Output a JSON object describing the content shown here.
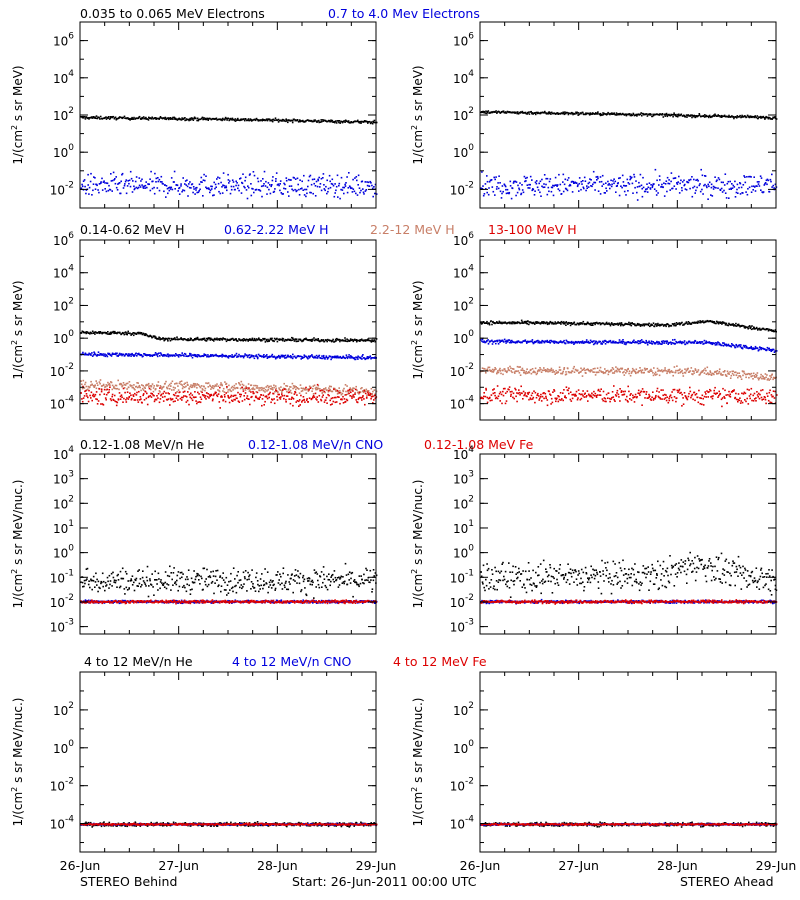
{
  "chart_data": {
    "type": "scatter",
    "x_tick_labels": [
      "26-Jun",
      "27-Jun",
      "28-Jun",
      "29-Jun"
    ],
    "x_range_days": [
      0,
      3
    ],
    "footer": {
      "left": "STEREO Behind",
      "center": "Start: 26-Jun-2011 00:00 UTC",
      "right": "STEREO Ahead"
    },
    "colors": {
      "black": "#000000",
      "blue": "#0000dd",
      "tan": "#c87f68",
      "red": "#dd0000"
    },
    "rows": [
      {
        "ylabel_main": "1/(cm",
        "ylabel_sup": "2",
        "ylabel_rest": " s sr MeV)",
        "yexp_range": [
          -3,
          7
        ],
        "y_tick_exponents": [
          -2,
          0,
          2,
          4,
          6
        ],
        "series": [
          {
            "name": "0.035 to 0.065 MeV Electrons",
            "color": "black",
            "behind": {
              "level": [
                [
                  0,
                  80
                ],
                [
                  1.5,
                  65
                ],
                [
                  3,
                  45
                ]
              ],
              "spread": 0.04
            },
            "ahead": {
              "level": [
                [
                  0,
                  160
                ],
                [
                  1.5,
                  120
                ],
                [
                  3,
                  80
                ]
              ],
              "spread": 0.04
            }
          },
          {
            "name": "0.7 to 4.0 Mev Electrons",
            "color": "blue",
            "behind": {
              "level": [
                [
                  0,
                  0.018
                ],
                [
                  3,
                  0.018
                ]
              ],
              "spread": 0.3
            },
            "ahead": {
              "level": [
                [
                  0,
                  0.018
                ],
                [
                  3,
                  0.018
                ]
              ],
              "spread": 0.3
            }
          }
        ]
      },
      {
        "ylabel_main": "1/(cm",
        "ylabel_sup": "2",
        "ylabel_rest": " s sr MeV)",
        "yexp_range": [
          -5,
          6
        ],
        "y_tick_exponents": [
          -4,
          -2,
          0,
          2,
          4,
          6
        ],
        "series": [
          {
            "name": "0.14-0.62 MeV H",
            "color": "black",
            "behind": {
              "level": [
                [
                  0,
                  2.5
                ],
                [
                  0.6,
                  2.2
                ],
                [
                  0.8,
                  1.0
                ],
                [
                  3,
                  0.8
                ]
              ],
              "spread": 0.05
            },
            "ahead": {
              "level": [
                [
                  0,
                  10
                ],
                [
                  1,
                  9
                ],
                [
                  1.9,
                  7
                ],
                [
                  2.3,
                  12
                ],
                [
                  3,
                  3
                ]
              ],
              "spread": 0.05
            }
          },
          {
            "name": "0.62-2.22 MeV H",
            "color": "blue",
            "behind": {
              "level": [
                [
                  0,
                  0.12
                ],
                [
                  3,
                  0.07
                ]
              ],
              "spread": 0.06
            },
            "ahead": {
              "level": [
                [
                  0,
                  0.7
                ],
                [
                  2.3,
                  0.6
                ],
                [
                  3,
                  0.2
                ]
              ],
              "spread": 0.06
            }
          },
          {
            "name": "2.2-12 MeV H",
            "color": "tan",
            "behind": {
              "level": [
                [
                  0,
                  0.0015
                ],
                [
                  1.5,
                  0.0012
                ],
                [
                  3,
                  0.0006
                ]
              ],
              "spread": 0.15
            },
            "ahead": {
              "level": [
                [
                  0,
                  0.012
                ],
                [
                  2.3,
                  0.01
                ],
                [
                  3,
                  0.004
                ]
              ],
              "spread": 0.12
            }
          },
          {
            "name": "13-100 MeV H",
            "color": "red",
            "behind": {
              "level": [
                [
                  0,
                  0.0003
                ],
                [
                  3,
                  0.0003
                ]
              ],
              "spread": 0.25
            },
            "ahead": {
              "level": [
                [
                  0,
                  0.0004
                ],
                [
                  3,
                  0.0003
                ]
              ],
              "spread": 0.25
            }
          }
        ]
      },
      {
        "ylabel_main": "1/(cm",
        "ylabel_sup": "2",
        "ylabel_rest": " s sr MeV/nuc.)",
        "yexp_range": [
          -3.3,
          4
        ],
        "y_tick_exponents": [
          -3,
          -2,
          -1,
          0,
          1,
          2,
          3,
          4
        ],
        "series": [
          {
            "name": "0.12-1.08 MeV/n He",
            "color": "black",
            "behind": {
              "level": [
                [
                  0,
                  0.08
                ],
                [
                  3,
                  0.08
                ]
              ],
              "spread": 0.25
            },
            "ahead": {
              "level": [
                [
                  0,
                  0.1
                ],
                [
                  1.8,
                  0.12
                ],
                [
                  2.2,
                  0.4
                ],
                [
                  2.6,
                  0.12
                ],
                [
                  3,
                  0.09
                ]
              ],
              "spread": 0.3
            }
          },
          {
            "name": "0.12-1.08 MeV/n CNO",
            "color": "blue",
            "behind": {
              "level": [
                [
                  0,
                  0.011
                ],
                [
                  3,
                  0.011
                ]
              ],
              "spread": 0.03
            },
            "ahead": {
              "level": [
                [
                  0,
                  0.011
                ],
                [
                  3,
                  0.011
                ]
              ],
              "spread": 0.03
            }
          },
          {
            "name": "0.12-1.08 MeV Fe",
            "color": "red",
            "behind": {
              "level": [
                [
                  0,
                  0.011
                ],
                [
                  3,
                  0.011
                ]
              ],
              "spread": 0.03
            },
            "ahead": {
              "level": [
                [
                  0,
                  0.011
                ],
                [
                  3,
                  0.011
                ]
              ],
              "spread": 0.03
            }
          }
        ]
      },
      {
        "ylabel_main": "1/(cm",
        "ylabel_sup": "2",
        "ylabel_rest": " s sr MeV/nuc.)",
        "yexp_range": [
          -5.5,
          4
        ],
        "y_tick_exponents": [
          -4,
          -2,
          0,
          2
        ],
        "series": [
          {
            "name": "4 to 12 MeV/n He",
            "color": "black",
            "behind": {
              "level": [
                [
                  0,
                  0.0001
                ],
                [
                  3,
                  0.0001
                ]
              ],
              "spread": 0.05
            },
            "ahead": {
              "level": [
                [
                  0,
                  0.0001
                ],
                [
                  3,
                  0.0001
                ]
              ],
              "spread": 0.05
            }
          },
          {
            "name": "4 to 12 MeV/n CNO",
            "color": "blue",
            "behind": {
              "level": [
                [
                  0,
                  0.0001
                ],
                [
                  3,
                  0.0001
                ]
              ],
              "spread": 0.02
            },
            "ahead": {
              "level": [
                [
                  0,
                  0.0001
                ],
                [
                  3,
                  0.0001
                ]
              ],
              "spread": 0.02
            }
          },
          {
            "name": "4 to 12 MeV Fe",
            "color": "red",
            "behind": {
              "level": [
                [
                  0,
                  0.0001
                ],
                [
                  3,
                  0.0001
                ]
              ],
              "spread": 0.02
            },
            "ahead": {
              "level": [
                [
                  0,
                  0.0001
                ],
                [
                  3,
                  0.0001
                ]
              ],
              "spread": 0.02
            }
          }
        ]
      }
    ]
  }
}
